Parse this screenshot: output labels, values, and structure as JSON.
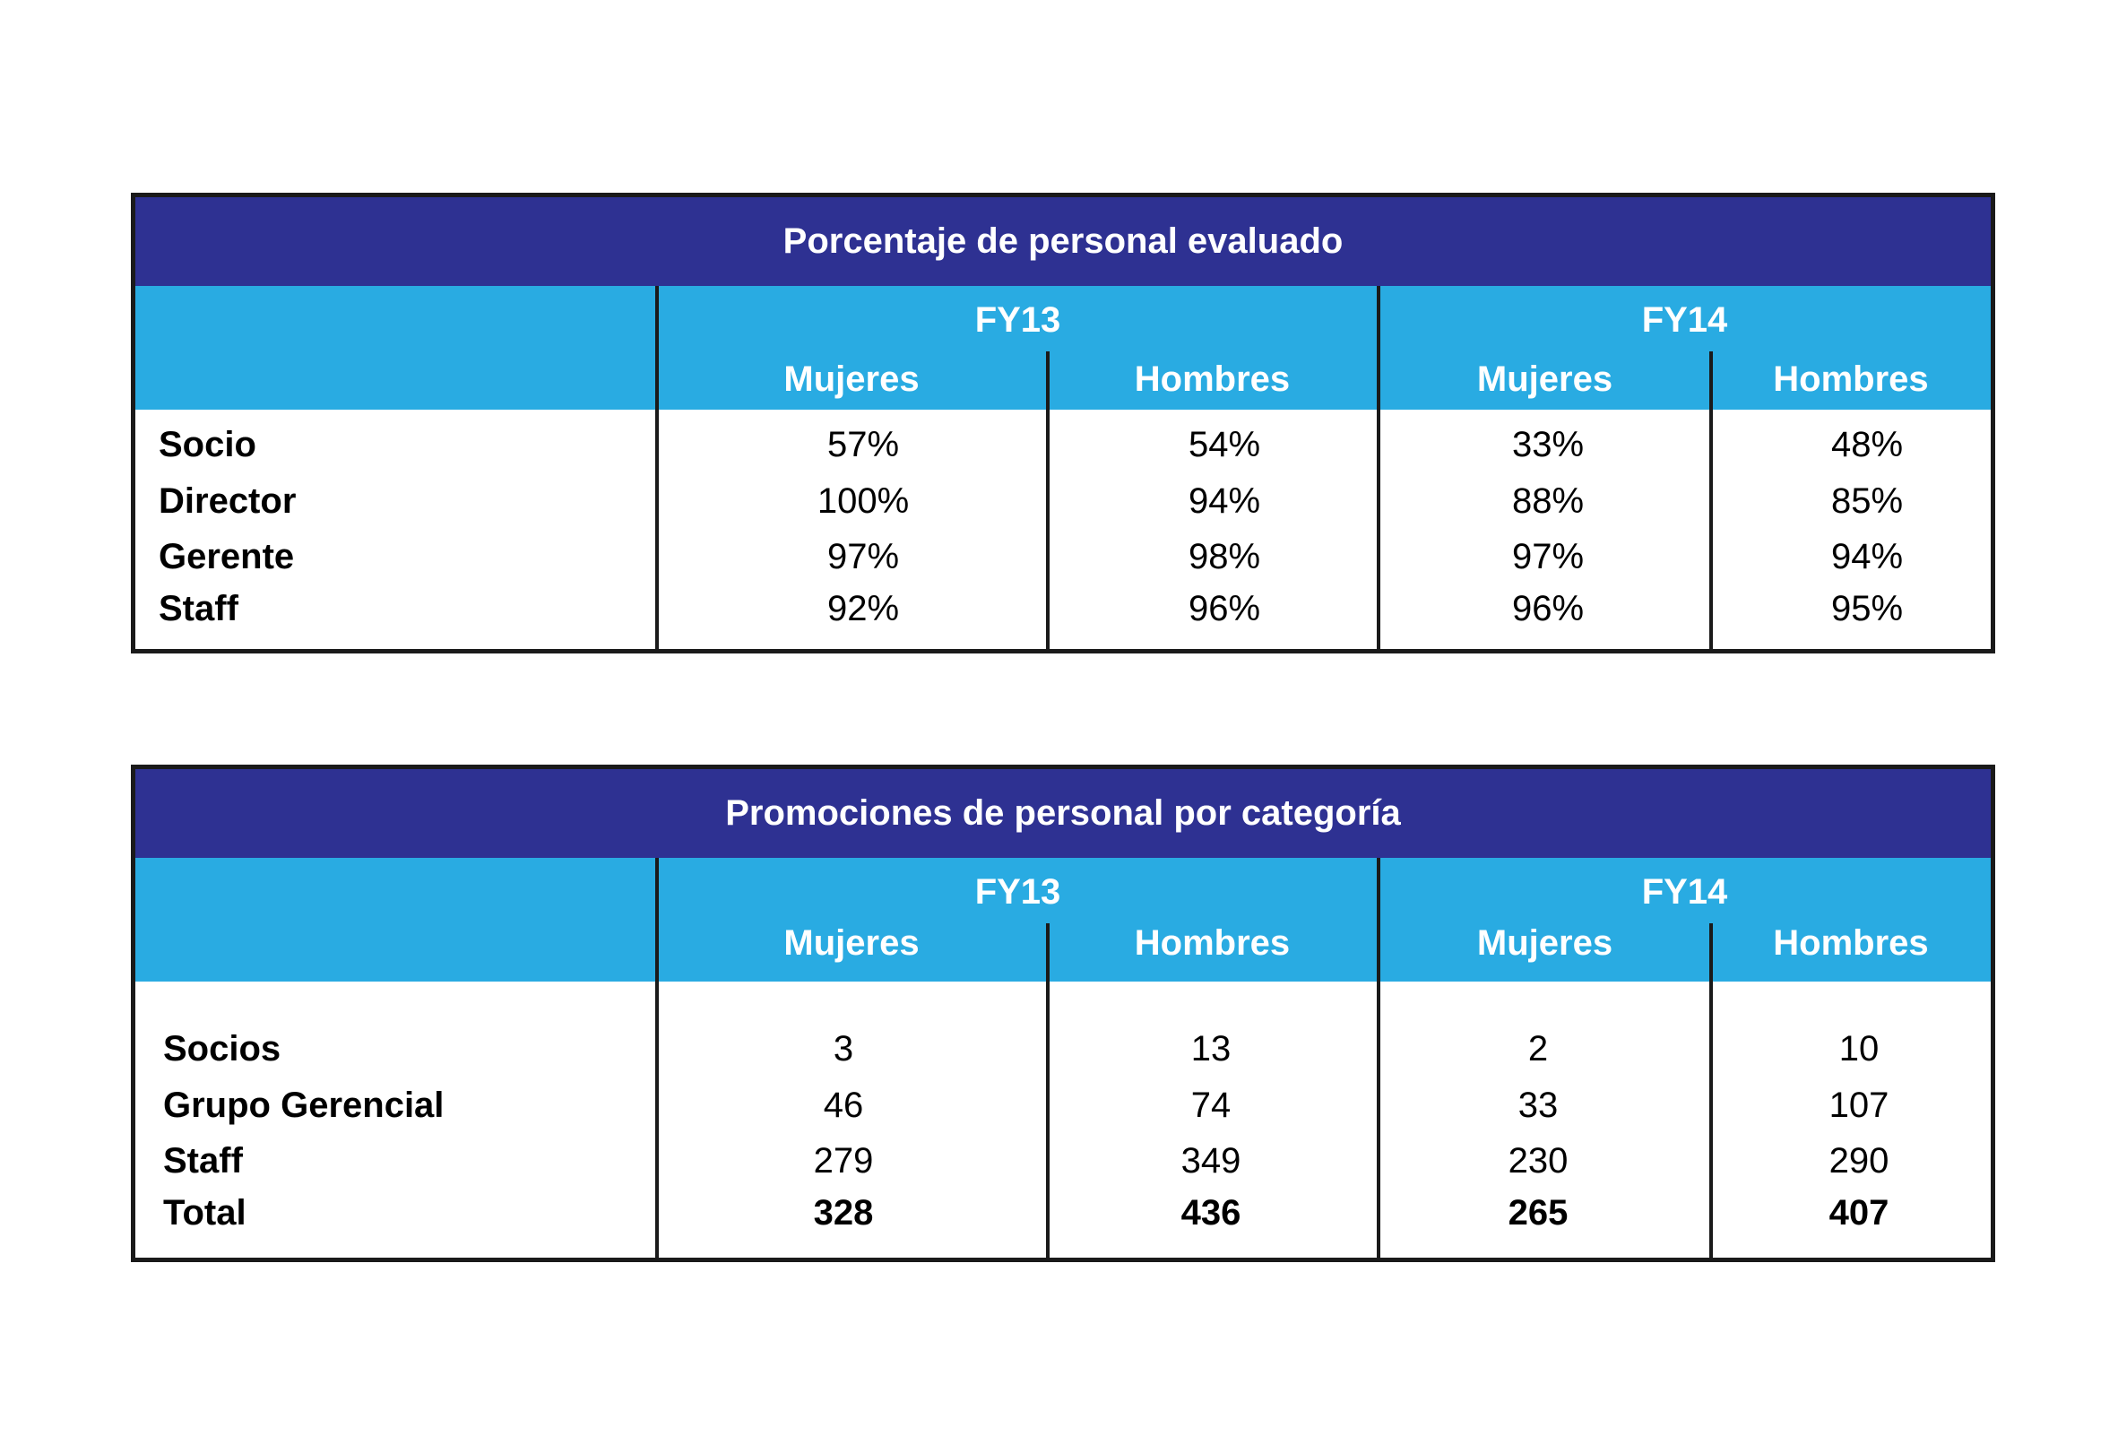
{
  "tables": [
    {
      "title": "Porcentaje de personal evaluado",
      "years": [
        "FY13",
        "FY14"
      ],
      "subheaders": [
        "Mujeres",
        "Hombres",
        "Mujeres",
        "Hombres"
      ],
      "rows": [
        {
          "label": "Socio",
          "values": [
            "57%",
            "54%",
            "33%",
            "48%"
          ]
        },
        {
          "label": "Director",
          "values": [
            "100%",
            "94%",
            "88%",
            "85%"
          ]
        },
        {
          "label": "Gerente",
          "values": [
            "97%",
            "98%",
            "97%",
            "94%"
          ]
        },
        {
          "label": "Staff",
          "values": [
            "92%",
            "96%",
            "96%",
            "95%"
          ]
        }
      ]
    },
    {
      "title": "Promociones de personal por categoría",
      "years": [
        "FY13",
        "FY14"
      ],
      "subheaders": [
        "Mujeres",
        "Hombres",
        "Mujeres",
        "Hombres"
      ],
      "rows": [
        {
          "label": "Socios",
          "values": [
            "3",
            "13",
            "2",
            "10"
          ]
        },
        {
          "label": "Grupo Gerencial",
          "values": [
            "46",
            "74",
            "33",
            "107"
          ]
        },
        {
          "label": "Staff",
          "values": [
            "279",
            "349",
            "230",
            "290"
          ]
        },
        {
          "label": "Total",
          "values": [
            "328",
            "436",
            "265",
            "407"
          ]
        }
      ]
    }
  ]
}
